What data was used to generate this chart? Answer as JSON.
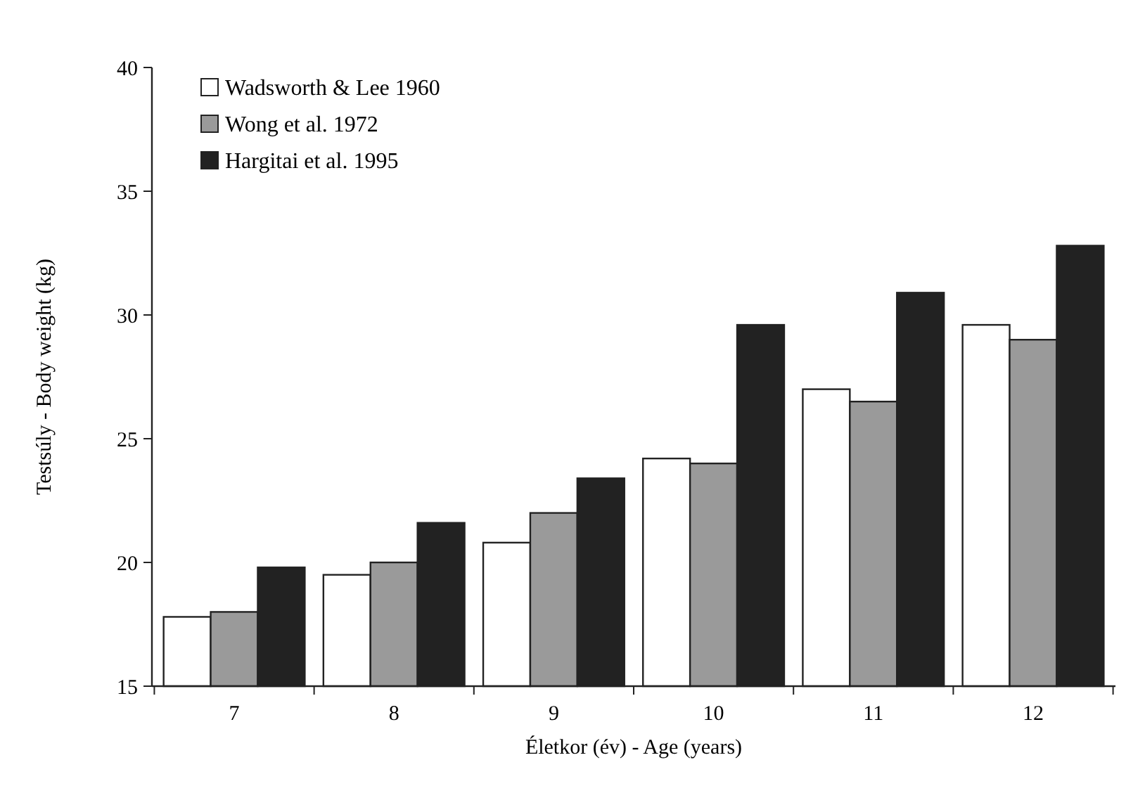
{
  "chart_data": {
    "type": "bar",
    "xlabel": "Életkor (év) - Age (years)",
    "ylabel": "Testsúly - Body weight (kg)",
    "categories": [
      "7",
      "8",
      "9",
      "10",
      "11",
      "12"
    ],
    "series": [
      {
        "name": "Wadsworth & Lee 1960",
        "color": "#ffffff",
        "values": [
          17.8,
          19.5,
          20.8,
          24.2,
          27.0,
          29.6
        ]
      },
      {
        "name": "Wong et al. 1972",
        "color": "#9a9a9a",
        "values": [
          18.0,
          20.0,
          22.0,
          24.0,
          26.5,
          29.0
        ]
      },
      {
        "name": "Hargitai et al. 1995",
        "color": "#222222",
        "values": [
          19.8,
          21.6,
          23.4,
          29.6,
          30.9,
          32.8
        ]
      }
    ],
    "ylim": [
      15,
      40
    ],
    "yticks": [
      15,
      20,
      25,
      30,
      35,
      40
    ],
    "grid": false,
    "legend": "top left"
  }
}
